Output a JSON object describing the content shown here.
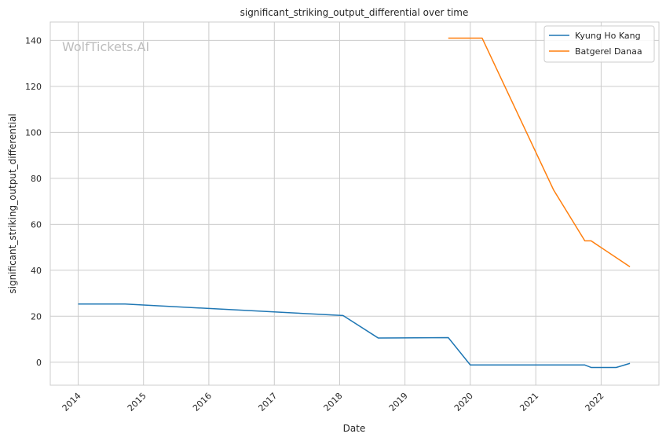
{
  "chart_data": {
    "type": "line",
    "title": "significant_striking_output_differential over time",
    "xlabel": "Date",
    "ylabel": "significant_striking_output_differential",
    "watermark": "WolfTickets.AI",
    "grid": true,
    "legend_position": "top-right",
    "xlim": [
      "2013-07-29",
      "2022-11-20"
    ],
    "ylim": [
      -10,
      148
    ],
    "x_ticks": [
      "2014",
      "2015",
      "2016",
      "2017",
      "2018",
      "2019",
      "2020",
      "2021",
      "2022"
    ],
    "x_tick_dates": [
      "2014-01-01",
      "2015-01-01",
      "2016-01-01",
      "2017-01-01",
      "2018-01-01",
      "2019-01-01",
      "2020-01-01",
      "2021-01-01",
      "2022-01-01"
    ],
    "y_ticks": [
      0,
      20,
      40,
      60,
      80,
      100,
      120,
      140
    ],
    "series": [
      {
        "name": "Kyung Ho Kang",
        "color": "#1f77b4",
        "points": [
          {
            "x": "2014-01-01",
            "y": 25.3
          },
          {
            "x": "2014-09-20",
            "y": 25.3
          },
          {
            "x": "2018-01-20",
            "y": 20.3
          },
          {
            "x": "2018-08-05",
            "y": 10.5
          },
          {
            "x": "2019-08-31",
            "y": 10.7
          },
          {
            "x": "2020-01-01",
            "y": -1.2
          },
          {
            "x": "2021-10-02",
            "y": -1.2
          },
          {
            "x": "2021-11-06",
            "y": -2.3
          },
          {
            "x": "2022-03-26",
            "y": -2.3
          },
          {
            "x": "2022-06-11",
            "y": -0.5
          }
        ]
      },
      {
        "name": "Batgerel Danaa",
        "color": "#ff7f0e",
        "points": [
          {
            "x": "2019-08-31",
            "y": 141
          },
          {
            "x": "2020-03-07",
            "y": 141
          },
          {
            "x": "2021-04-10",
            "y": 75
          },
          {
            "x": "2021-10-02",
            "y": 52.8
          },
          {
            "x": "2021-11-06",
            "y": 52.8
          },
          {
            "x": "2022-06-11",
            "y": 41.5
          }
        ]
      }
    ]
  }
}
